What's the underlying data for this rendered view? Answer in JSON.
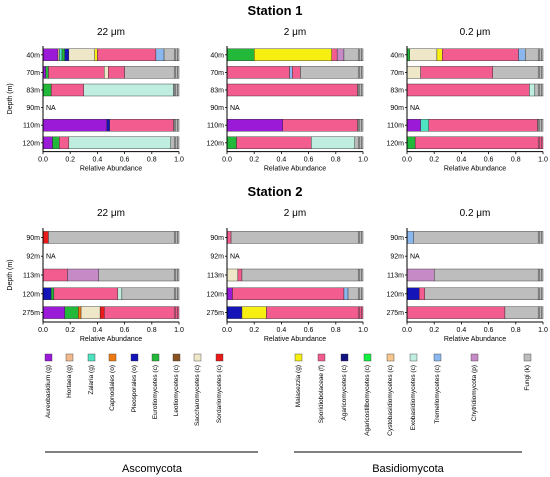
{
  "colors": {
    "Aureobasidium (g)": "#9a1ad8",
    "Hortaea (g)": "#f2b98f",
    "Zalaria (g)": "#4de3c0",
    "Capnodiales (o)": "#f07a12",
    "Pleosporales (o)": "#1414b8",
    "Eurotiomycetes (c)": "#22b83a",
    "Leotiomycetes (c)": "#8a5220",
    "Saccharomycetes (c)": "#efe8c8",
    "Sordariomycetes (c)": "#e81a1a",
    "Malasezzia (g)": "#f7ee12",
    "Sporidiobolaceae (f)": "#f25c8e",
    "Agaricomycetes (c)": "#121280",
    "Agaricostilbomycetes (c)": "#12f040",
    "Cystobasidiomycetes (c)": "#f6c68c",
    "Exobasidiomycetes (c)": "#bfeee0",
    "Tremellomycetes (c)": "#8ab8ee",
    "Chytridiomycota (p)": "#c68ac6",
    "Fungi (k)": "#bdbdbd"
  },
  "legend": {
    "items": [
      "Aureobasidium (g)",
      "Hortaea (g)",
      "Zalaria (g)",
      "Capnodiales (o)",
      "Pleosporales (o)",
      "Eurotiomycetes (c)",
      "Leotiomycetes (c)",
      "Saccharomycetes (c)",
      "Sordariomycetes (c)",
      "Malasezzia (g)",
      "Sporidiobolaceae (f)",
      "Agaricomycetes (c)",
      "Agaricostilbomycetes (c)",
      "Cystobasidiomycetes (c)",
      "Exobasidiomycetes (c)",
      "Tremellomycetes (c)",
      "Chytridiomycota (p)",
      "Fungi (k)"
    ],
    "groups": [
      "Ascomycota",
      "Basidiomycota"
    ]
  },
  "chart_data": [
    {
      "type": "bar",
      "orientation": "horizontal",
      "stacked": true,
      "title": "Station 1",
      "subtitle": "22 μm",
      "xlabel": "Relative Abundance",
      "ylabel": "Depth (m)",
      "xlim": [
        0,
        1
      ],
      "xticks": [
        "0.0",
        "0.2",
        "0.4",
        "0.6",
        "0.8",
        "1.0"
      ],
      "categories": [
        "40m",
        "70m",
        "83m",
        "90m",
        "110m",
        "120m"
      ],
      "bars": [
        {
          "depth": "40m",
          "segments": [
            [
              "Aureobasidium (g)",
              0.11
            ],
            [
              "Hortaea (g)",
              0.01
            ],
            [
              "Zalaria (g)",
              0.02
            ],
            [
              "Eurotiomycetes (c)",
              0.02
            ],
            [
              "Pleosporales (o)",
              0.03
            ],
            [
              "Saccharomycetes (c)",
              0.19
            ],
            [
              "Malasezzia (g)",
              0.02
            ],
            [
              "Sporidiobolaceae (f)",
              0.43
            ],
            [
              "Tremellomycetes (c)",
              0.06
            ],
            [
              "Fungi (k)",
              0.11
            ]
          ]
        },
        {
          "depth": "70m",
          "segments": [
            [
              "Aureobasidium (g)",
              0.02
            ],
            [
              "Eurotiomycetes (c)",
              0.02
            ],
            [
              "Sporidiobolaceae (f)",
              0.41
            ],
            [
              "Saccharomycetes (c)",
              0.03
            ],
            [
              "Sporidiobolaceae (f)",
              0.12
            ],
            [
              "Fungi (k)",
              0.4
            ]
          ]
        },
        {
          "depth": "83m",
          "segments": [
            [
              "Eurotiomycetes (c)",
              0.06
            ],
            [
              "Sporidiobolaceae (f)",
              0.24
            ],
            [
              "Exobasidiomycetes (c)",
              0.66
            ],
            [
              "Fungi (k)",
              0.04
            ]
          ]
        },
        {
          "depth": "90m",
          "segments": [],
          "note": "NA"
        },
        {
          "depth": "110m",
          "segments": [
            [
              "Aureobasidium (g)",
              0.47
            ],
            [
              "Pleosporales (o)",
              0.02
            ],
            [
              "Sporidiobolaceae (f)",
              0.47
            ],
            [
              "Fungi (k)",
              0.04
            ]
          ]
        },
        {
          "depth": "120m",
          "segments": [
            [
              "Aureobasidium (g)",
              0.07
            ],
            [
              "Eurotiomycetes (c)",
              0.05
            ],
            [
              "Sporidiobolaceae (f)",
              0.07
            ],
            [
              "Exobasidiomycetes (c)",
              0.75
            ],
            [
              "Fungi (k)",
              0.06
            ]
          ]
        }
      ]
    },
    {
      "type": "bar",
      "orientation": "horizontal",
      "stacked": true,
      "title": "Station 1",
      "subtitle": "2 μm",
      "xlabel": "Relative Abundance",
      "ylabel": "Depth (m)",
      "xlim": [
        0,
        1
      ],
      "xticks": [
        "0.0",
        "0.2",
        "0.4",
        "0.6",
        "0.8",
        "1.0"
      ],
      "categories": [
        "40m",
        "70m",
        "83m",
        "90m",
        "110m",
        "120m"
      ],
      "bars": [
        {
          "depth": "40m",
          "segments": [
            [
              "Eurotiomycetes (c)",
              0.2
            ],
            [
              "Malasezzia (g)",
              0.57
            ],
            [
              "Sporidiobolaceae (f)",
              0.04
            ],
            [
              "Chytridiomycota (p)",
              0.05
            ],
            [
              "Fungi (k)",
              0.14
            ]
          ]
        },
        {
          "depth": "70m",
          "segments": [
            [
              "Sporidiobolaceae (f)",
              0.46
            ],
            [
              "Tremellomycetes (c)",
              0.02
            ],
            [
              "Sporidiobolaceae (f)",
              0.06
            ],
            [
              "Fungi (k)",
              0.46
            ]
          ]
        },
        {
          "depth": "83m",
          "segments": [
            [
              "Sporidiobolaceae (f)",
              0.96
            ],
            [
              "Fungi (k)",
              0.04
            ]
          ]
        },
        {
          "depth": "90m",
          "segments": [],
          "note": "NA"
        },
        {
          "depth": "110m",
          "segments": [
            [
              "Aureobasidium (g)",
              0.41
            ],
            [
              "Sporidiobolaceae (f)",
              0.55
            ],
            [
              "Fungi (k)",
              0.04
            ]
          ]
        },
        {
          "depth": "120m",
          "segments": [
            [
              "Eurotiomycetes (c)",
              0.07
            ],
            [
              "Sporidiobolaceae (f)",
              0.55
            ],
            [
              "Exobasidiomycetes (c)",
              0.32
            ],
            [
              "Fungi (k)",
              0.06
            ]
          ]
        }
      ]
    },
    {
      "type": "bar",
      "orientation": "horizontal",
      "stacked": true,
      "title": "Station 1",
      "subtitle": "0.2 μm",
      "xlabel": "Relative Abundance",
      "ylabel": "Depth (m)",
      "xlim": [
        0,
        1
      ],
      "xticks": [
        "0.0",
        "0.2",
        "0.4",
        "0.6",
        "0.8",
        "1.0"
      ],
      "categories": [
        "40m",
        "70m",
        "83m",
        "90m",
        "110m",
        "120m"
      ],
      "bars": [
        {
          "depth": "40m",
          "segments": [
            [
              "Eurotiomycetes (c)",
              0.02
            ],
            [
              "Saccharomycetes (c)",
              0.2
            ],
            [
              "Malasezzia (g)",
              0.04
            ],
            [
              "Sporidiobolaceae (f)",
              0.56
            ],
            [
              "Tremellomycetes (c)",
              0.05
            ],
            [
              "Fungi (k)",
              0.13
            ]
          ]
        },
        {
          "depth": "70m",
          "segments": [
            [
              "Saccharomycetes (c)",
              0.1
            ],
            [
              "Sporidiobolaceae (f)",
              0.53
            ],
            [
              "Fungi (k)",
              0.37
            ]
          ]
        },
        {
          "depth": "83m",
          "segments": [
            [
              "Sporidiobolaceae (f)",
              0.9
            ],
            [
              "Exobasidiomycetes (c)",
              0.04
            ],
            [
              "Fungi (k)",
              0.06
            ]
          ]
        },
        {
          "depth": "90m",
          "segments": [],
          "note": "NA"
        },
        {
          "depth": "110m",
          "segments": [
            [
              "Aureobasidium (g)",
              0.1
            ],
            [
              "Zalaria (g)",
              0.06
            ],
            [
              "Sporidiobolaceae (f)",
              0.8
            ],
            [
              "Fungi (k)",
              0.04
            ]
          ]
        },
        {
          "depth": "120m",
          "segments": [
            [
              "Eurotiomycetes (c)",
              0.06
            ],
            [
              "Sporidiobolaceae (f)",
              0.94
            ]
          ]
        }
      ]
    },
    {
      "type": "bar",
      "orientation": "horizontal",
      "stacked": true,
      "title": "Station 2",
      "subtitle": "22 μm",
      "xlabel": "Relative Abundance",
      "ylabel": "Depth (m)",
      "xlim": [
        0,
        1
      ],
      "xticks": [
        "0.0",
        "0.2",
        "0.4",
        "0.6",
        "0.8",
        "1.0"
      ],
      "categories": [
        "90m",
        "92m",
        "113m",
        "120m",
        "275m"
      ],
      "bars": [
        {
          "depth": "90m",
          "segments": [
            [
              "Sordariomycetes (c)",
              0.04
            ],
            [
              "Fungi (k)",
              0.96
            ]
          ]
        },
        {
          "depth": "92m",
          "segments": [],
          "note": "NA"
        },
        {
          "depth": "113m",
          "segments": [
            [
              "Sporidiobolaceae (f)",
              0.18
            ],
            [
              "Chytridiomycota (p)",
              0.23
            ],
            [
              "Fungi (k)",
              0.59
            ]
          ]
        },
        {
          "depth": "120m",
          "segments": [
            [
              "Pleosporales (o)",
              0.06
            ],
            [
              "Eurotiomycetes (c)",
              0.02
            ],
            [
              "Sporidiobolaceae (f)",
              0.47
            ],
            [
              "Exobasidiomycetes (c)",
              0.03
            ],
            [
              "Fungi (k)",
              0.42
            ]
          ]
        },
        {
          "depth": "275m",
          "segments": [
            [
              "Aureobasidium (g)",
              0.16
            ],
            [
              "Eurotiomycetes (c)",
              0.1
            ],
            [
              "Capnodiales (o)",
              0.02
            ],
            [
              "Saccharomycetes (c)",
              0.14
            ],
            [
              "Sordariomycetes (c)",
              0.03
            ],
            [
              "Sporidiobolaceae (f)",
              0.55
            ]
          ]
        }
      ]
    },
    {
      "type": "bar",
      "orientation": "horizontal",
      "stacked": true,
      "title": "Station 2",
      "subtitle": "2 μm",
      "xlabel": "Relative Abundance",
      "ylabel": "Depth (m)",
      "xlim": [
        0,
        1
      ],
      "xticks": [
        "0.0",
        "0.2",
        "0.4",
        "0.6",
        "0.8",
        "1.0"
      ],
      "categories": [
        "90m",
        "92m",
        "113m",
        "120m",
        "275m"
      ],
      "bars": [
        {
          "depth": "90m",
          "segments": [
            [
              "Sporidiobolaceae (f)",
              0.03
            ],
            [
              "Fungi (k)",
              0.97
            ]
          ]
        },
        {
          "depth": "92m",
          "segments": [],
          "note": "NA"
        },
        {
          "depth": "113m",
          "segments": [
            [
              "Saccharomycetes (c)",
              0.08
            ],
            [
              "Sporidiobolaceae (f)",
              0.03
            ],
            [
              "Fungi (k)",
              0.89
            ]
          ]
        },
        {
          "depth": "120m",
          "segments": [
            [
              "Aureobasidium (g)",
              0.04
            ],
            [
              "Sporidiobolaceae (f)",
              0.82
            ],
            [
              "Tremellomycetes (c)",
              0.03
            ],
            [
              "Fungi (k)",
              0.11
            ]
          ]
        },
        {
          "depth": "275m",
          "segments": [
            [
              "Pleosporales (o)",
              0.11
            ],
            [
              "Malasezzia (g)",
              0.18
            ],
            [
              "Sporidiobolaceae (f)",
              0.71
            ]
          ]
        }
      ]
    },
    {
      "type": "bar",
      "orientation": "horizontal",
      "stacked": true,
      "title": "Station 2",
      "subtitle": "0.2 μm",
      "xlabel": "Relative Abundance",
      "ylabel": "Depth (m)",
      "xlim": [
        0,
        1
      ],
      "xticks": [
        "0.0",
        "0.2",
        "0.4",
        "0.6",
        "0.8",
        "1.0"
      ],
      "categories": [
        "90m",
        "92m",
        "113m",
        "120m",
        "275m"
      ],
      "bars": [
        {
          "depth": "90m",
          "segments": [
            [
              "Tremellomycetes (c)",
              0.05
            ],
            [
              "Fungi (k)",
              0.95
            ]
          ]
        },
        {
          "depth": "92m",
          "segments": [],
          "note": "NA"
        },
        {
          "depth": "113m",
          "segments": [
            [
              "Chytridiomycota (p)",
              0.2
            ],
            [
              "Fungi (k)",
              0.8
            ]
          ]
        },
        {
          "depth": "120m",
          "segments": [
            [
              "Pleosporales (o)",
              0.09
            ],
            [
              "Sporidiobolaceae (f)",
              0.04
            ],
            [
              "Fungi (k)",
              0.87
            ]
          ]
        },
        {
          "depth": "275m",
          "segments": [
            [
              "Sporidiobolaceae (f)",
              0.72
            ],
            [
              "Fungi (k)",
              0.28
            ]
          ]
        }
      ]
    }
  ]
}
